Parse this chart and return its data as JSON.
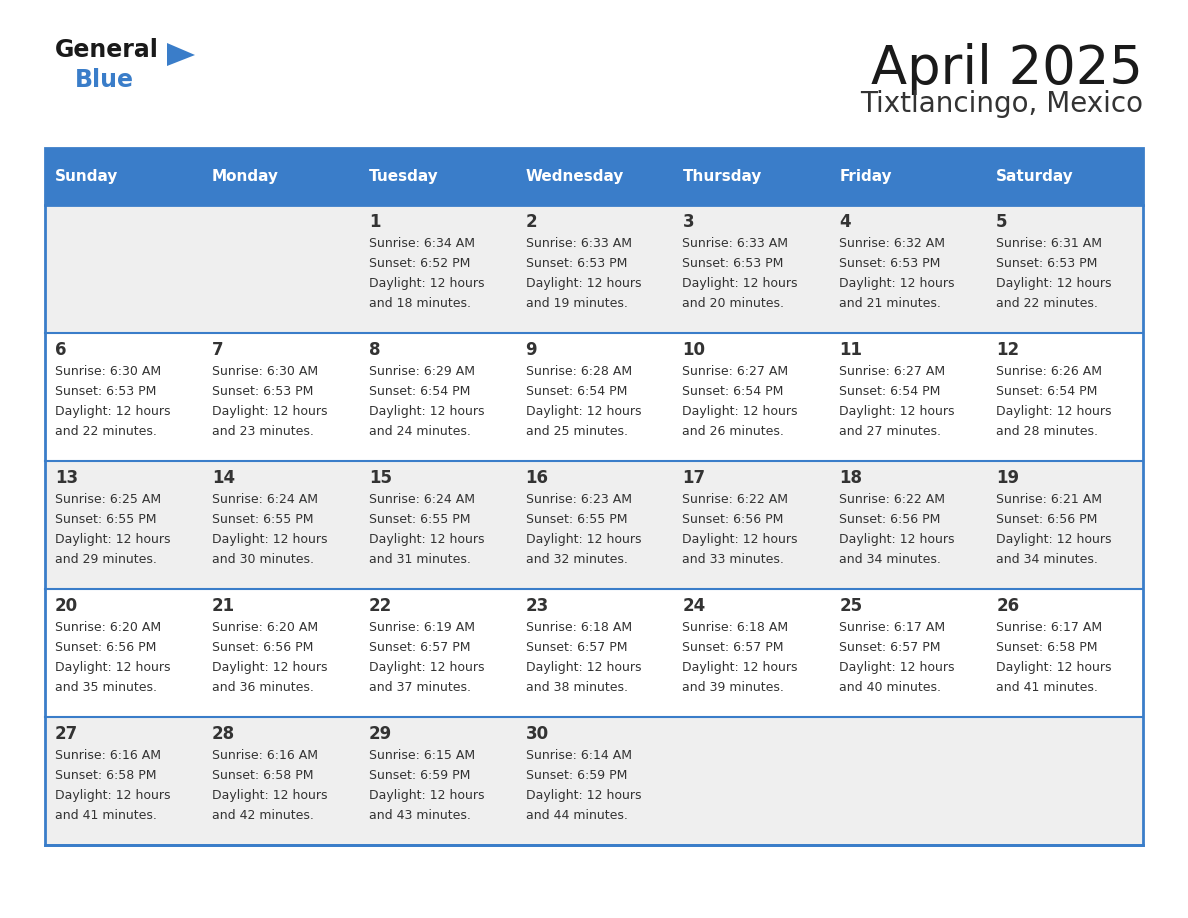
{
  "title": "April 2025",
  "subtitle": "Tixtlancingo, Mexico",
  "days_of_week": [
    "Sunday",
    "Monday",
    "Tuesday",
    "Wednesday",
    "Thursday",
    "Friday",
    "Saturday"
  ],
  "header_bg": "#3A7DC9",
  "header_text": "#FFFFFF",
  "cell_bg_light": "#EFEFEF",
  "cell_bg_white": "#FFFFFF",
  "cell_text": "#333333",
  "border_color": "#3A7DC9",
  "title_color": "#1a1a1a",
  "subtitle_color": "#333333",
  "logo_general_color": "#1a1a1a",
  "logo_blue_color": "#3A7DC9",
  "logo_triangle_color": "#3A7DC9",
  "calendar_data": [
    [
      {
        "day": "",
        "sunrise": "",
        "sunset": "",
        "daylight_min": ""
      },
      {
        "day": "",
        "sunrise": "",
        "sunset": "",
        "daylight_min": ""
      },
      {
        "day": "1",
        "sunrise": "6:34 AM",
        "sunset": "6:52 PM",
        "daylight_min": "18 minutes."
      },
      {
        "day": "2",
        "sunrise": "6:33 AM",
        "sunset": "6:53 PM",
        "daylight_min": "19 minutes."
      },
      {
        "day": "3",
        "sunrise": "6:33 AM",
        "sunset": "6:53 PM",
        "daylight_min": "20 minutes."
      },
      {
        "day": "4",
        "sunrise": "6:32 AM",
        "sunset": "6:53 PM",
        "daylight_min": "21 minutes."
      },
      {
        "day": "5",
        "sunrise": "6:31 AM",
        "sunset": "6:53 PM",
        "daylight_min": "22 minutes."
      }
    ],
    [
      {
        "day": "6",
        "sunrise": "6:30 AM",
        "sunset": "6:53 PM",
        "daylight_min": "22 minutes."
      },
      {
        "day": "7",
        "sunrise": "6:30 AM",
        "sunset": "6:53 PM",
        "daylight_min": "23 minutes."
      },
      {
        "day": "8",
        "sunrise": "6:29 AM",
        "sunset": "6:54 PM",
        "daylight_min": "24 minutes."
      },
      {
        "day": "9",
        "sunrise": "6:28 AM",
        "sunset": "6:54 PM",
        "daylight_min": "25 minutes."
      },
      {
        "day": "10",
        "sunrise": "6:27 AM",
        "sunset": "6:54 PM",
        "daylight_min": "26 minutes."
      },
      {
        "day": "11",
        "sunrise": "6:27 AM",
        "sunset": "6:54 PM",
        "daylight_min": "27 minutes."
      },
      {
        "day": "12",
        "sunrise": "6:26 AM",
        "sunset": "6:54 PM",
        "daylight_min": "28 minutes."
      }
    ],
    [
      {
        "day": "13",
        "sunrise": "6:25 AM",
        "sunset": "6:55 PM",
        "daylight_min": "29 minutes."
      },
      {
        "day": "14",
        "sunrise": "6:24 AM",
        "sunset": "6:55 PM",
        "daylight_min": "30 minutes."
      },
      {
        "day": "15",
        "sunrise": "6:24 AM",
        "sunset": "6:55 PM",
        "daylight_min": "31 minutes."
      },
      {
        "day": "16",
        "sunrise": "6:23 AM",
        "sunset": "6:55 PM",
        "daylight_min": "32 minutes."
      },
      {
        "day": "17",
        "sunrise": "6:22 AM",
        "sunset": "6:56 PM",
        "daylight_min": "33 minutes."
      },
      {
        "day": "18",
        "sunrise": "6:22 AM",
        "sunset": "6:56 PM",
        "daylight_min": "34 minutes."
      },
      {
        "day": "19",
        "sunrise": "6:21 AM",
        "sunset": "6:56 PM",
        "daylight_min": "34 minutes."
      }
    ],
    [
      {
        "day": "20",
        "sunrise": "6:20 AM",
        "sunset": "6:56 PM",
        "daylight_min": "35 minutes."
      },
      {
        "day": "21",
        "sunrise": "6:20 AM",
        "sunset": "6:56 PM",
        "daylight_min": "36 minutes."
      },
      {
        "day": "22",
        "sunrise": "6:19 AM",
        "sunset": "6:57 PM",
        "daylight_min": "37 minutes."
      },
      {
        "day": "23",
        "sunrise": "6:18 AM",
        "sunset": "6:57 PM",
        "daylight_min": "38 minutes."
      },
      {
        "day": "24",
        "sunrise": "6:18 AM",
        "sunset": "6:57 PM",
        "daylight_min": "39 minutes."
      },
      {
        "day": "25",
        "sunrise": "6:17 AM",
        "sunset": "6:57 PM",
        "daylight_min": "40 minutes."
      },
      {
        "day": "26",
        "sunrise": "6:17 AM",
        "sunset": "6:58 PM",
        "daylight_min": "41 minutes."
      }
    ],
    [
      {
        "day": "27",
        "sunrise": "6:16 AM",
        "sunset": "6:58 PM",
        "daylight_min": "41 minutes."
      },
      {
        "day": "28",
        "sunrise": "6:16 AM",
        "sunset": "6:58 PM",
        "daylight_min": "42 minutes."
      },
      {
        "day": "29",
        "sunrise": "6:15 AM",
        "sunset": "6:59 PM",
        "daylight_min": "43 minutes."
      },
      {
        "day": "30",
        "sunrise": "6:14 AM",
        "sunset": "6:59 PM",
        "daylight_min": "44 minutes."
      },
      {
        "day": "",
        "sunrise": "",
        "sunset": "",
        "daylight_min": ""
      },
      {
        "day": "",
        "sunrise": "",
        "sunset": "",
        "daylight_min": ""
      },
      {
        "day": "",
        "sunrise": "",
        "sunset": "",
        "daylight_min": ""
      }
    ]
  ]
}
